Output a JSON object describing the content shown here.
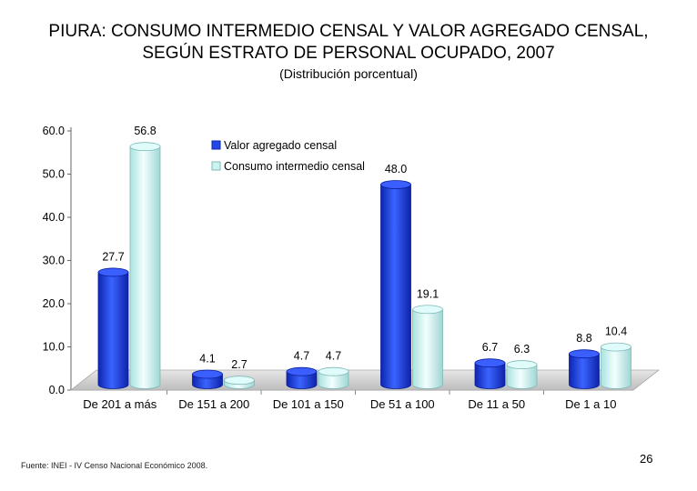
{
  "slide": {
    "title_line1": "PIURA: CONSUMO INTERMEDIO CENSAL Y VALOR AGREGADO CENSAL,",
    "title_line2": "SEGÚN ESTRATO DE PERSONAL OCUPADO, 2007",
    "subtitle": "(Distribución porcentual)",
    "source": "Fuente: INEI - IV Censo Nacional Económico 2008.",
    "page_number": "26"
  },
  "colors": {
    "valor_agregado": "#2348e8",
    "consumo_intermedio": "#c8f4f2"
  },
  "chart_data": {
    "type": "bar",
    "categories": [
      "De 201 a más",
      "De 151 a 200",
      "De 101 a 150",
      "De 51 a 100",
      "De 11 a 50",
      "De 1 a 10"
    ],
    "series": [
      {
        "name": "Valor agregado censal",
        "values": [
          27.7,
          4.1,
          4.7,
          48.0,
          6.7,
          8.8
        ],
        "labels": [
          "27.7",
          "4.1",
          "4.7",
          "48.0",
          "6.7",
          "8.8"
        ]
      },
      {
        "name": "Consumo intermedio censal",
        "values": [
          56.8,
          2.7,
          4.7,
          19.1,
          6.3,
          10.4
        ],
        "labels": [
          "56.8",
          "2.7",
          "4.7",
          "19.1",
          "6.3",
          "10.4"
        ]
      }
    ],
    "ylim": [
      0,
      60
    ],
    "yticks": [
      "0.0",
      "10.0",
      "20.0",
      "30.0",
      "40.0",
      "50.0",
      "60.0"
    ],
    "legend_position": "top-center",
    "grid": false
  }
}
